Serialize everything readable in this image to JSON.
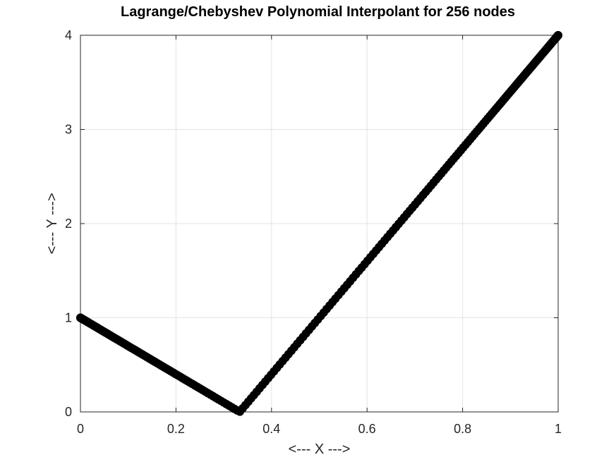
{
  "chart_data": {
    "type": "scatter",
    "title": "Lagrange/Chebyshev Polynomial Interpolant for 256 nodes",
    "xlabel": "<--- X --->",
    "ylabel": "<--- Y --->",
    "xlim": [
      0,
      1
    ],
    "ylim": [
      0,
      4
    ],
    "xticks": [
      0,
      0.2,
      0.4,
      0.6,
      0.8,
      1
    ],
    "xtick_labels": [
      "0",
      "0.2",
      "0.4",
      "0.6",
      "0.8",
      "1"
    ],
    "yticks": [
      0,
      1,
      2,
      3,
      4
    ],
    "ytick_labels": [
      "0",
      "1",
      "2",
      "3",
      "4"
    ],
    "grid": true,
    "series": [
      {
        "marker": "circle",
        "color": "#000000",
        "nodes": 256,
        "x_start": 0,
        "x_end": 1,
        "vertex": [
          0.3333,
          0
        ],
        "endpoints": [
          [
            0,
            1
          ],
          [
            1,
            4
          ]
        ]
      }
    ]
  }
}
